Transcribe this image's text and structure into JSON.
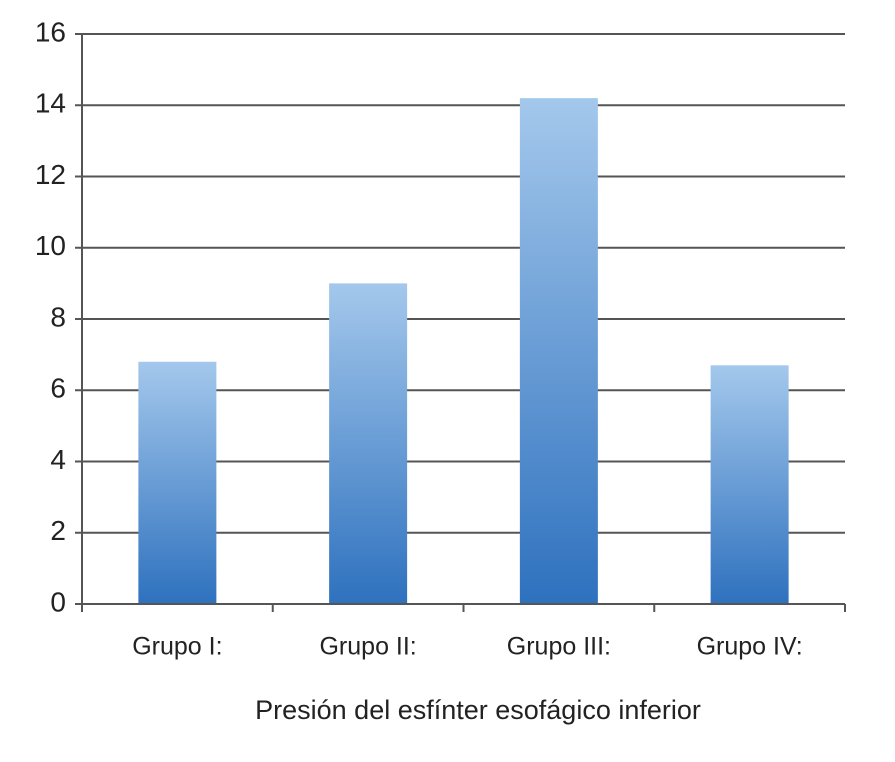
{
  "chart_data": {
    "type": "bar",
    "x_label": "Presión del esfínter esofágico inferior",
    "categories": [
      "Grupo I:",
      "Grupo II:",
      "Grupo III:",
      "Grupo IV:"
    ],
    "values": [
      6.8,
      9.0,
      14.2,
      6.7
    ],
    "gradient": [
      "#a4c8ec",
      "#2e71be"
    ],
    "ylim": [
      0,
      16
    ],
    "yticks": [
      0,
      2,
      4,
      6,
      8,
      10,
      12,
      14,
      16
    ],
    "grid": true
  }
}
